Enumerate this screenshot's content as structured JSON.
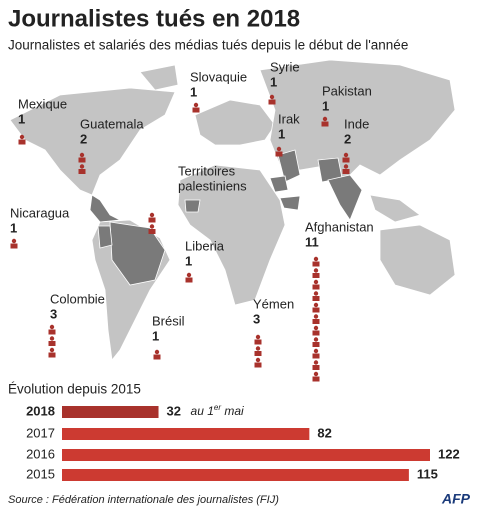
{
  "title": "Journalistes tués en 2018",
  "subtitle": "Journalistes et salariés des médias tués depuis le début de l'année",
  "map": {
    "countries": [
      {
        "name": [
          "Mexique"
        ],
        "count": 1
      },
      {
        "name": [
          "Guatemala"
        ],
        "count": 2
      },
      {
        "name": [
          "Nicaragua"
        ],
        "count": 1
      },
      {
        "name": [
          "Colombie"
        ],
        "count": 3
      },
      {
        "name": [
          "Brésil"
        ],
        "count": 1
      },
      {
        "name": [
          "Liberia"
        ],
        "count": 1
      },
      {
        "name": [
          "Slovaquie"
        ],
        "count": 1
      },
      {
        "name": [
          "Syrie"
        ],
        "count": 1
      },
      {
        "name": [
          "Pakistan"
        ],
        "count": 1
      },
      {
        "name": [
          "Irak"
        ],
        "count": 1
      },
      {
        "name": [
          "Inde"
        ],
        "count": 2
      },
      {
        "name": [
          "Territoires",
          "palestiniens"
        ],
        "icons": 2
      },
      {
        "name": [
          "Yémen"
        ],
        "count": 3
      },
      {
        "name": [
          "Afghanistan"
        ],
        "count": 11
      }
    ]
  },
  "chart_data": {
    "type": "bar",
    "title": "Évolution depuis 2015",
    "categories": [
      "2018",
      "2017",
      "2016",
      "2015"
    ],
    "values": [
      32,
      82,
      122,
      115
    ],
    "colors": [
      "#a8322c",
      "#cc3a31",
      "#cc3a31",
      "#cc3a31"
    ],
    "annotation": [
      "au 1",
      "er",
      " mai"
    ]
  },
  "source": "Source : Fédération internationale des journalistes (FIJ)",
  "credit": "AFP"
}
